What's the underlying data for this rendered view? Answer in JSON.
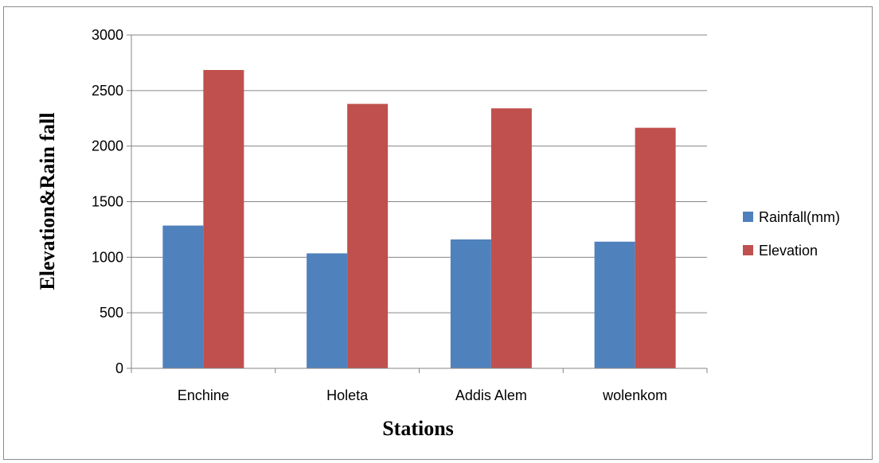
{
  "chart_data": {
    "type": "bar",
    "categories": [
      "Enchine",
      "Holeta",
      "Addis Alem",
      "wolenkom"
    ],
    "series": [
      {
        "name": "Rainfall(mm)",
        "values": [
          1285,
          1035,
          1160,
          1140
        ],
        "color": "#4f81bd"
      },
      {
        "name": "Elevation",
        "values": [
          2685,
          2380,
          2340,
          2165
        ],
        "color": "#c0504d"
      }
    ],
    "xlabel": "Stations",
    "ylabel": "Elevation&Rain fall",
    "ylim": [
      0,
      3000
    ],
    "yticks": [
      0,
      500,
      1000,
      1500,
      2000,
      2500,
      3000
    ],
    "grid": true,
    "legend_position": "right"
  }
}
